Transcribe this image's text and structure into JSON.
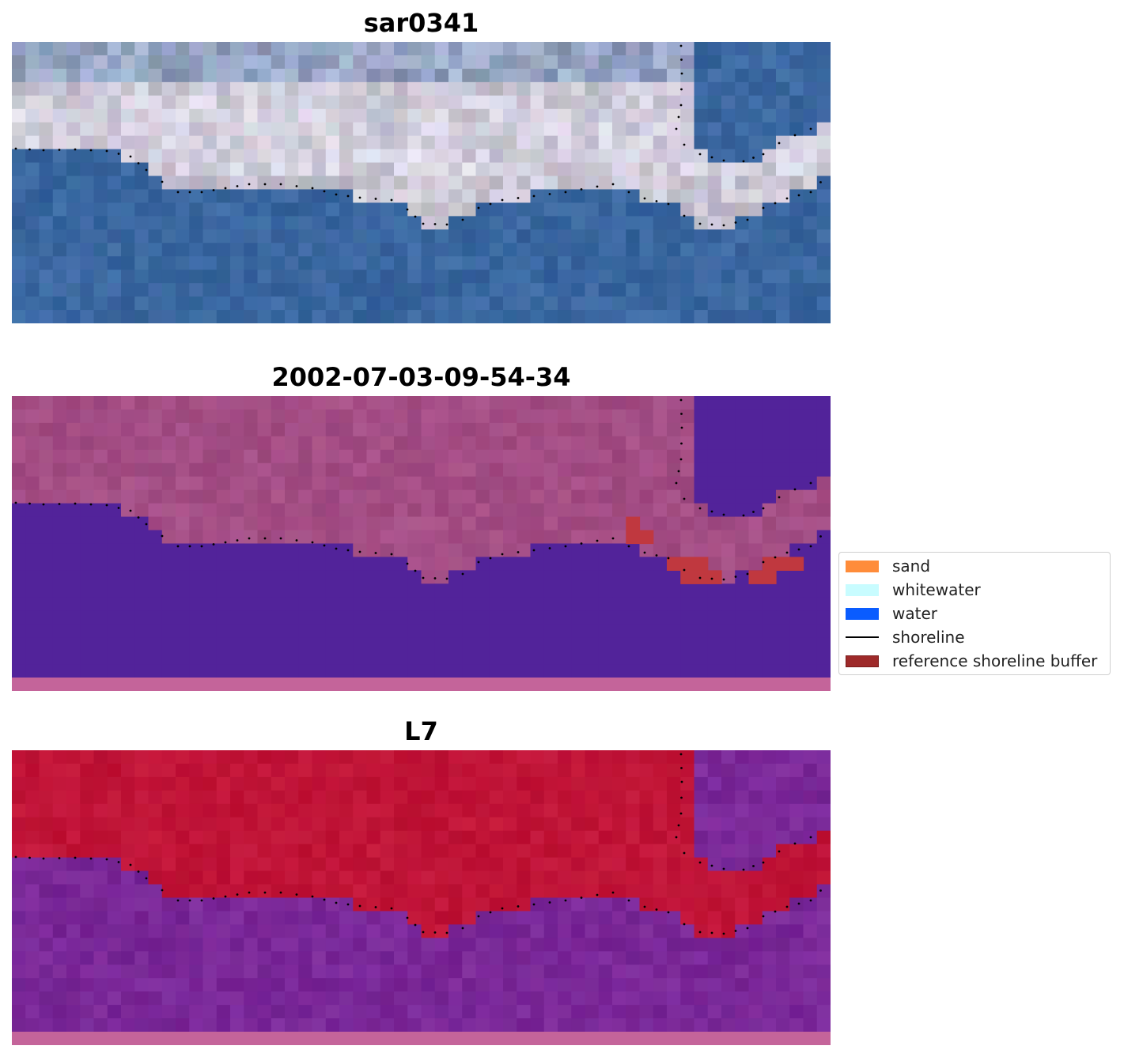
{
  "panels": [
    {
      "title": "sar0341"
    },
    {
      "title": "2002-07-03-09-54-34"
    },
    {
      "title": "L7"
    }
  ],
  "legend": {
    "items": [
      {
        "label": "sand",
        "color": "#ff8c3a",
        "kind": "patch"
      },
      {
        "label": "whitewater",
        "color": "#c8fcff",
        "kind": "patch"
      },
      {
        "label": "water",
        "color": "#0a5cff",
        "kind": "patch"
      },
      {
        "label": "shoreline",
        "color": "#000000",
        "kind": "line"
      },
      {
        "label": "reference shoreline buffer",
        "color": "#9e2a2a",
        "kind": "patch"
      }
    ]
  },
  "colors": {
    "rgb_land": "#c9c6d3",
    "rgb_water": "#3a67a0",
    "class_land": "#a34d84",
    "class_water": "#52239a",
    "class_buffer": "#c0383f",
    "mndwi_land": "#c01437",
    "mndwi_water": "#7a2898",
    "mndwi_edge": "#c65a98",
    "bottom_band": "#c4649a"
  }
}
